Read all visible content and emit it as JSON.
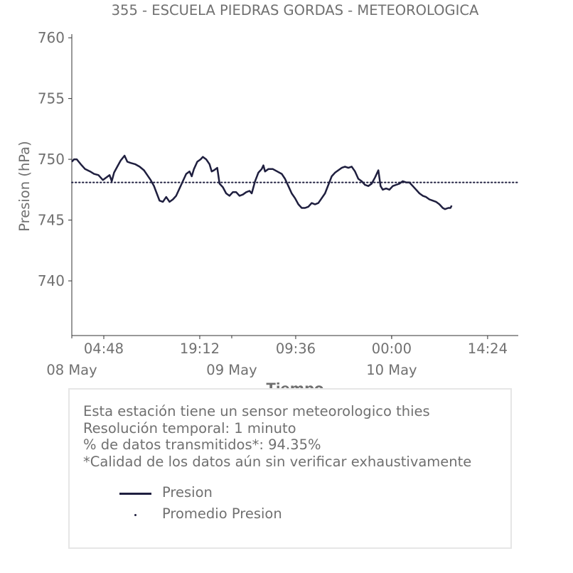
{
  "chart_data": {
    "type": "line",
    "title": "355 - ESCUELA PIEDRAS GORDAS - METEOROLOGICA",
    "xlabel": "Tiempo",
    "ylabel": "Presion (hPa)",
    "ylim": [
      735.5,
      760.3
    ],
    "yticks": [
      740,
      745,
      750,
      755,
      760
    ],
    "xlim": [
      "2024-05-08 00:00",
      "2024-05-10 19:00"
    ],
    "xticks": [
      {
        "time": "2024-05-08 04:48",
        "label": "04:48"
      },
      {
        "time": "2024-05-08 19:12",
        "label": "19:12"
      },
      {
        "time": "2024-05-09 09:36",
        "label": "09:36"
      },
      {
        "time": "2024-05-10 00:00",
        "label": "00:00"
      },
      {
        "time": "2024-05-10 14:24",
        "label": "14:24"
      }
    ],
    "date_labels": [
      {
        "time": "2024-05-08 00:00",
        "label": "08 May"
      },
      {
        "time": "2024-05-09 00:00",
        "label": "09 May"
      },
      {
        "time": "2024-05-10 00:00",
        "label": "10 May"
      }
    ],
    "grid": false,
    "series": [
      {
        "name": "Presion",
        "color": "#1f1f3f",
        "style": "solid",
        "points": [
          [
            "2024-05-08 00:00",
            749.8
          ],
          [
            "2024-05-08 00:20",
            750.0
          ],
          [
            "2024-05-08 00:45",
            750.0
          ],
          [
            "2024-05-08 01:20",
            749.6
          ],
          [
            "2024-05-08 02:00",
            749.2
          ],
          [
            "2024-05-08 02:45",
            749.0
          ],
          [
            "2024-05-08 03:20",
            748.8
          ],
          [
            "2024-05-08 04:00",
            748.7
          ],
          [
            "2024-05-08 04:40",
            748.3
          ],
          [
            "2024-05-08 05:10",
            748.5
          ],
          [
            "2024-05-08 05:40",
            748.7
          ],
          [
            "2024-05-08 06:00",
            748.2
          ],
          [
            "2024-05-08 06:20",
            748.9
          ],
          [
            "2024-05-08 06:50",
            749.4
          ],
          [
            "2024-05-08 07:20",
            749.9
          ],
          [
            "2024-05-08 07:55",
            750.3
          ],
          [
            "2024-05-08 08:20",
            749.8
          ],
          [
            "2024-05-08 08:50",
            749.7
          ],
          [
            "2024-05-08 09:30",
            749.6
          ],
          [
            "2024-05-08 10:10",
            749.4
          ],
          [
            "2024-05-08 10:50",
            749.1
          ],
          [
            "2024-05-08 11:20",
            748.7
          ],
          [
            "2024-05-08 11:50",
            748.3
          ],
          [
            "2024-05-08 12:20",
            747.8
          ],
          [
            "2024-05-08 12:45",
            747.2
          ],
          [
            "2024-05-08 13:10",
            746.6
          ],
          [
            "2024-05-08 13:40",
            746.5
          ],
          [
            "2024-05-08 14:10",
            746.9
          ],
          [
            "2024-05-08 14:40",
            746.5
          ],
          [
            "2024-05-08 15:10",
            746.7
          ],
          [
            "2024-05-08 15:40",
            747.0
          ],
          [
            "2024-05-08 16:10",
            747.6
          ],
          [
            "2024-05-08 16:40",
            748.2
          ],
          [
            "2024-05-08 17:10",
            748.8
          ],
          [
            "2024-05-08 17:40",
            749.0
          ],
          [
            "2024-05-08 18:00",
            748.6
          ],
          [
            "2024-05-08 18:20",
            749.2
          ],
          [
            "2024-05-08 18:50",
            749.8
          ],
          [
            "2024-05-08 19:20",
            750.0
          ],
          [
            "2024-05-08 19:40",
            750.2
          ],
          [
            "2024-05-08 20:10",
            750.0
          ],
          [
            "2024-05-08 20:40",
            749.6
          ],
          [
            "2024-05-08 21:00",
            749.0
          ],
          [
            "2024-05-08 21:20",
            749.1
          ],
          [
            "2024-05-08 21:50",
            749.3
          ],
          [
            "2024-05-08 22:10",
            748.0
          ],
          [
            "2024-05-08 22:40",
            747.7
          ],
          [
            "2024-05-08 23:10",
            747.2
          ],
          [
            "2024-05-08 23:40",
            747.0
          ],
          [
            "2024-05-09 00:10",
            747.3
          ],
          [
            "2024-05-09 00:40",
            747.3
          ],
          [
            "2024-05-09 01:10",
            747.0
          ],
          [
            "2024-05-09 01:40",
            747.1
          ],
          [
            "2024-05-09 02:10",
            747.3
          ],
          [
            "2024-05-09 02:40",
            747.4
          ],
          [
            "2024-05-09 03:00",
            747.2
          ],
          [
            "2024-05-09 03:30",
            748.2
          ],
          [
            "2024-05-09 04:00",
            748.9
          ],
          [
            "2024-05-09 04:30",
            749.2
          ],
          [
            "2024-05-09 04:45",
            749.5
          ],
          [
            "2024-05-09 05:00",
            749.0
          ],
          [
            "2024-05-09 05:30",
            749.2
          ],
          [
            "2024-05-09 06:10",
            749.2
          ],
          [
            "2024-05-09 06:50",
            749.0
          ],
          [
            "2024-05-09 07:30",
            748.8
          ],
          [
            "2024-05-09 08:00",
            748.4
          ],
          [
            "2024-05-09 08:30",
            747.8
          ],
          [
            "2024-05-09 09:00",
            747.2
          ],
          [
            "2024-05-09 09:30",
            746.8
          ],
          [
            "2024-05-09 10:00",
            746.3
          ],
          [
            "2024-05-09 10:30",
            746.0
          ],
          [
            "2024-05-09 11:00",
            746.0
          ],
          [
            "2024-05-09 11:30",
            746.1
          ],
          [
            "2024-05-09 12:00",
            746.4
          ],
          [
            "2024-05-09 12:30",
            746.3
          ],
          [
            "2024-05-09 13:00",
            746.4
          ],
          [
            "2024-05-09 13:30",
            746.8
          ],
          [
            "2024-05-09 14:00",
            747.2
          ],
          [
            "2024-05-09 14:30",
            747.9
          ],
          [
            "2024-05-09 15:00",
            748.6
          ],
          [
            "2024-05-09 15:30",
            748.9
          ],
          [
            "2024-05-09 16:00",
            749.1
          ],
          [
            "2024-05-09 16:30",
            749.3
          ],
          [
            "2024-05-09 17:00",
            749.4
          ],
          [
            "2024-05-09 17:30",
            749.3
          ],
          [
            "2024-05-09 18:00",
            749.4
          ],
          [
            "2024-05-09 18:30",
            749.0
          ],
          [
            "2024-05-09 19:00",
            748.4
          ],
          [
            "2024-05-09 19:30",
            748.2
          ],
          [
            "2024-05-09 20:00",
            747.9
          ],
          [
            "2024-05-09 20:30",
            747.8
          ],
          [
            "2024-05-09 21:00",
            748.0
          ],
          [
            "2024-05-09 21:30",
            748.5
          ],
          [
            "2024-05-09 22:00",
            749.1
          ],
          [
            "2024-05-09 22:20",
            747.8
          ],
          [
            "2024-05-09 22:40",
            747.5
          ],
          [
            "2024-05-09 23:10",
            747.6
          ],
          [
            "2024-05-09 23:40",
            747.5
          ],
          [
            "2024-05-10 00:10",
            747.8
          ],
          [
            "2024-05-10 00:40",
            747.9
          ],
          [
            "2024-05-10 01:10",
            748.0
          ],
          [
            "2024-05-10 01:40",
            748.2
          ],
          [
            "2024-05-10 02:10",
            748.1
          ],
          [
            "2024-05-10 02:40",
            748.1
          ],
          [
            "2024-05-10 03:10",
            747.8
          ],
          [
            "2024-05-10 03:40",
            747.5
          ],
          [
            "2024-05-10 04:10",
            747.2
          ],
          [
            "2024-05-10 04:40",
            747.0
          ],
          [
            "2024-05-10 05:10",
            746.9
          ],
          [
            "2024-05-10 05:40",
            746.7
          ],
          [
            "2024-05-10 06:10",
            746.6
          ],
          [
            "2024-05-10 06:40",
            746.5
          ],
          [
            "2024-05-10 07:10",
            746.3
          ],
          [
            "2024-05-10 07:40",
            746.0
          ],
          [
            "2024-05-10 08:00",
            745.9
          ],
          [
            "2024-05-10 08:30",
            746.0
          ],
          [
            "2024-05-10 08:50",
            746.0
          ],
          [
            "2024-05-10 09:00",
            746.2
          ]
        ]
      },
      {
        "name": "Promedio Presion",
        "color": "#1f1f3f",
        "style": "dotted",
        "value": 748.1
      }
    ]
  },
  "info": {
    "lines": [
      "Esta estación tiene un sensor meteorologico thies",
      "Resolución temporal: 1 minuto",
      "% de datos transmitidos*: 94.35%",
      "*Calidad de los datos aún sin verificar exhaustivamente"
    ],
    "legend": [
      "Presion",
      "Promedio Presion"
    ]
  }
}
